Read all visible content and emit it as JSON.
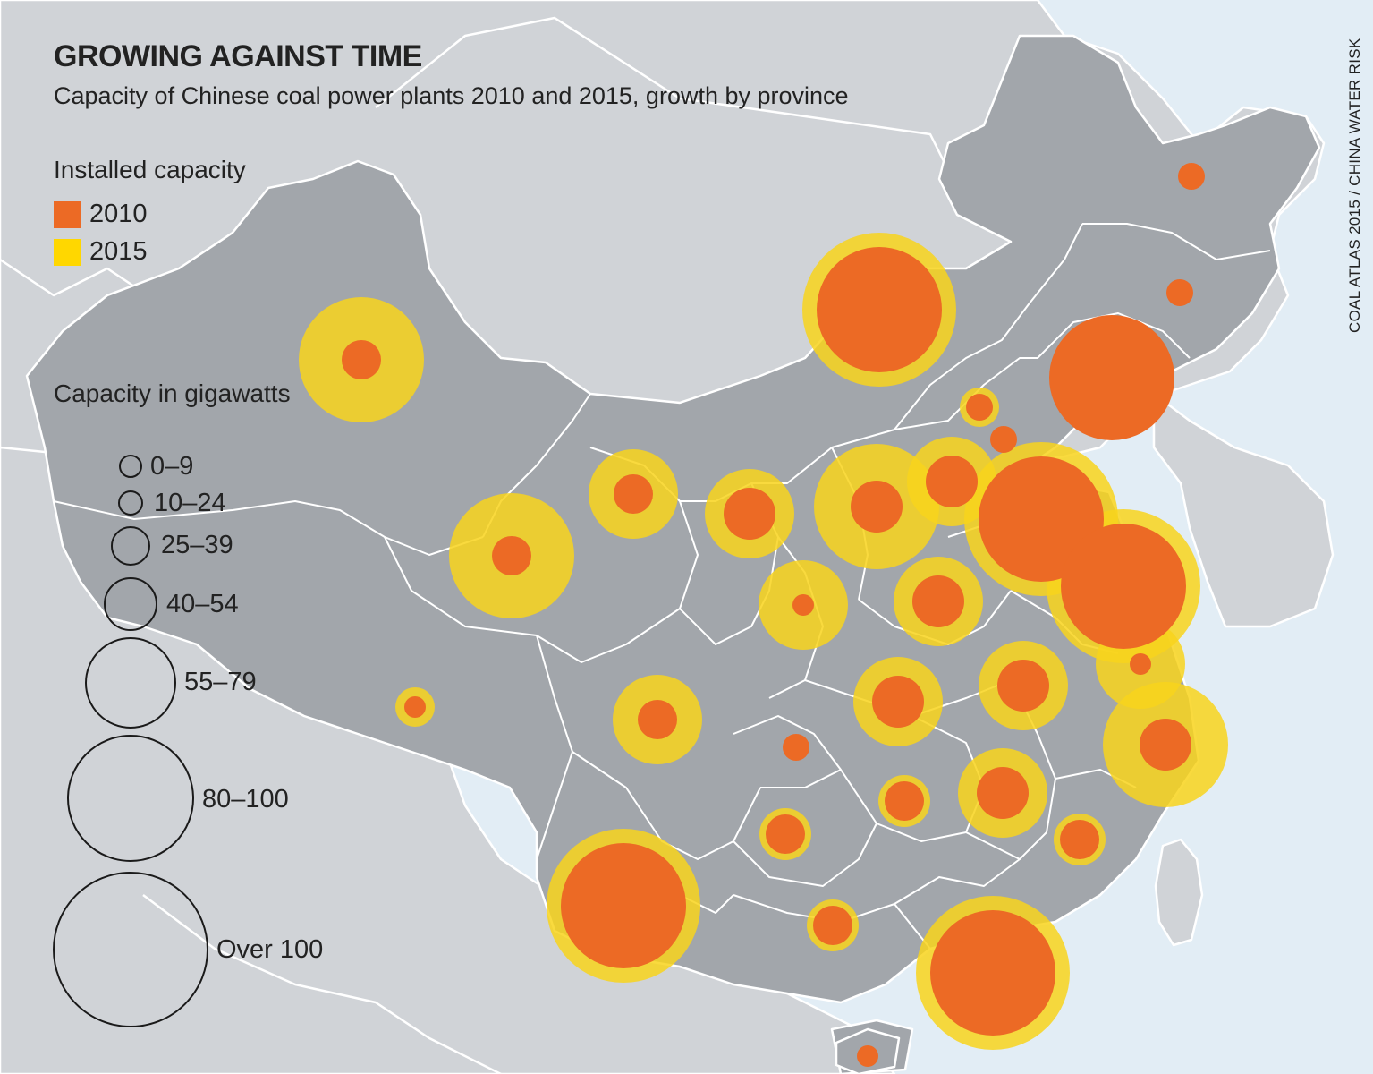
{
  "title": "GROWING AGAINST TIME",
  "subtitle": "Capacity of Chinese coal power plants 2010 and 2015, growth by province",
  "source": "COAL ATLAS 2015 / CHINA WATER RISK",
  "legend": {
    "heading": "Installed capacity",
    "items": [
      {
        "label": "2010",
        "color": "#ec6a25"
      },
      {
        "label": "2015",
        "color": "#ffd700"
      }
    ]
  },
  "size_legend": {
    "heading": "Capacity in gigawatts",
    "classes": [
      "0–9",
      "10–24",
      "25–39",
      "40–54",
      "55–79",
      "80–100",
      "Over 100"
    ]
  },
  "colors": {
    "sea": "#e2edf5",
    "neighbor_land": "#d0d3d7",
    "china_land": "#a2a6ab",
    "border": "#ffffff",
    "circle_2010": "#ec6a25",
    "circle_2015": "#f8d31c"
  },
  "chart_data": {
    "type": "proportional-symbol-map",
    "units": "gigawatts",
    "series": [
      {
        "name": "2010"
      },
      {
        "name": "2015"
      }
    ],
    "classes": [
      "0–9",
      "10–24",
      "25–39",
      "40–54",
      "55–79",
      "80–100",
      "Over 100"
    ],
    "markers": [
      {
        "c2010": 3,
        "c2015": 6
      },
      {
        "c2010": 3,
        "c2015": 5
      },
      {
        "c2010": 3,
        "c2015": 6
      },
      {
        "c2010": 4,
        "c2015": 5
      },
      {
        "c2010": 1,
        "c2015": 3
      },
      {
        "c2010": 6,
        "c2015": 7
      },
      {
        "c2010": 3,
        "c2015": 5
      },
      {
        "c2010": 2,
        "c2015": 2
      },
      {
        "c2010": 1,
        "c2015": 5
      },
      {
        "c2010": 2,
        "c2015": 3
      },
      {
        "c2010": 2,
        "c2015": 2
      },
      {
        "c2010": 4,
        "c2015": 6
      },
      {
        "c2010": 4,
        "c2015": 5
      },
      {
        "c2010": 6,
        "c2015": 7
      },
      {
        "c2010": 4,
        "c2015": 5
      },
      {
        "c2010": 6,
        "c2015": 7
      },
      {
        "c2010": 1,
        "c2015": 5
      },
      {
        "c2010": 4,
        "c2015": 5
      },
      {
        "c2010": 4,
        "c2015": 5
      },
      {
        "c2010": 4,
        "c2015": 6
      },
      {
        "c2010": 2,
        "c2015": 2
      },
      {
        "c2010": 2,
        "c2015": 2
      },
      {
        "c2010": 6,
        "c2015": 6
      },
      {
        "c2010": 3,
        "c2015": 4
      },
      {
        "c2010": 3,
        "c2015": 4
      },
      {
        "c2010": 4,
        "c2015": 5
      },
      {
        "c2010": 3,
        "c2015": 4
      },
      {
        "c2010": 6,
        "c2015": 7
      },
      {
        "c2010": 1,
        "c2015": 1
      }
    ]
  }
}
